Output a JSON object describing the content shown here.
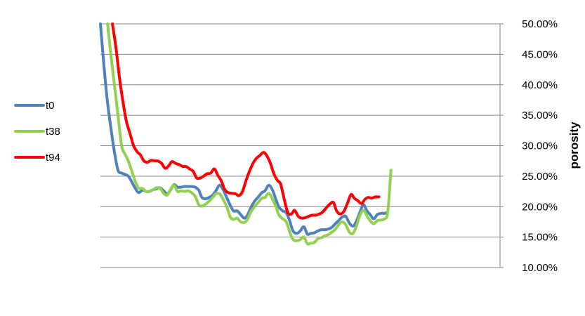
{
  "chart_data": {
    "type": "line",
    "title": "",
    "xlabel": "",
    "ylabel": "porosity",
    "ylim": [
      0.1,
      0.5
    ],
    "y_ticks": [
      "10.00%",
      "15.00%",
      "20.00%",
      "25.00%",
      "30.00%",
      "35.00%",
      "40.00%",
      "45.00%",
      "50.00%"
    ],
    "x_range": [
      0,
      100
    ],
    "grid": true,
    "legend_position": "left",
    "series": [
      {
        "name": "t0",
        "color": "#4f81bd",
        "points": [
          [
            0,
            0.5
          ],
          [
            0.9,
            0.43
          ],
          [
            1.8,
            0.37
          ],
          [
            2.6,
            0.33
          ],
          [
            3.5,
            0.29
          ],
          [
            4.4,
            0.26
          ],
          [
            5.3,
            0.255
          ],
          [
            6.1,
            0.253
          ],
          [
            7.0,
            0.25
          ],
          [
            7.9,
            0.24
          ],
          [
            8.8,
            0.229
          ],
          [
            9.6,
            0.223
          ],
          [
            10.5,
            0.227
          ],
          [
            11.4,
            0.225
          ],
          [
            12.3,
            0.225
          ],
          [
            13.2,
            0.228
          ],
          [
            14.0,
            0.229
          ],
          [
            14.9,
            0.231
          ],
          [
            15.8,
            0.226
          ],
          [
            16.7,
            0.221
          ],
          [
            17.5,
            0.227
          ],
          [
            18.4,
            0.236
          ],
          [
            19.3,
            0.232
          ],
          [
            20.2,
            0.232
          ],
          [
            21.1,
            0.233
          ],
          [
            21.9,
            0.233
          ],
          [
            22.8,
            0.233
          ],
          [
            23.7,
            0.232
          ],
          [
            24.6,
            0.227
          ],
          [
            25.4,
            0.215
          ],
          [
            26.3,
            0.213
          ],
          [
            27.2,
            0.215
          ],
          [
            28.1,
            0.219
          ],
          [
            28.9,
            0.226
          ],
          [
            29.8,
            0.235
          ],
          [
            30.7,
            0.228
          ],
          [
            31.6,
            0.215
          ],
          [
            32.5,
            0.202
          ],
          [
            33.3,
            0.193
          ],
          [
            34.2,
            0.193
          ],
          [
            35.1,
            0.187
          ],
          [
            36.0,
            0.181
          ],
          [
            36.8,
            0.186
          ],
          [
            37.7,
            0.199
          ],
          [
            38.6,
            0.209
          ],
          [
            39.5,
            0.216
          ],
          [
            40.4,
            0.223
          ],
          [
            41.2,
            0.226
          ],
          [
            42.1,
            0.235
          ],
          [
            43.0,
            0.228
          ],
          [
            43.9,
            0.212
          ],
          [
            44.7,
            0.199
          ],
          [
            45.6,
            0.193
          ],
          [
            46.5,
            0.19
          ],
          [
            47.4,
            0.176
          ],
          [
            48.2,
            0.16
          ],
          [
            49.1,
            0.156
          ],
          [
            50.0,
            0.16
          ],
          [
            50.9,
            0.167
          ],
          [
            51.8,
            0.155
          ],
          [
            52.6,
            0.156
          ],
          [
            53.5,
            0.157
          ],
          [
            54.4,
            0.16
          ],
          [
            55.3,
            0.162
          ],
          [
            56.1,
            0.162
          ],
          [
            57.0,
            0.163
          ],
          [
            57.9,
            0.166
          ],
          [
            58.8,
            0.172
          ],
          [
            59.6,
            0.177
          ],
          [
            60.5,
            0.183
          ],
          [
            61.4,
            0.184
          ],
          [
            62.3,
            0.173
          ],
          [
            63.2,
            0.168
          ],
          [
            64.0,
            0.175
          ],
          [
            64.9,
            0.19
          ],
          [
            65.8,
            0.203
          ],
          [
            66.7,
            0.193
          ],
          [
            67.5,
            0.187
          ],
          [
            68.4,
            0.18
          ],
          [
            69.3,
            0.187
          ],
          [
            70.2,
            0.189
          ],
          [
            71.1,
            0.189
          ],
          [
            71.9,
            0.191
          ]
        ]
      },
      {
        "name": "t38",
        "color": "#92d050",
        "points": [
          [
            1.8,
            0.5
          ],
          [
            2.6,
            0.45
          ],
          [
            3.5,
            0.4
          ],
          [
            4.4,
            0.35
          ],
          [
            5.3,
            0.3
          ],
          [
            6.1,
            0.287
          ],
          [
            7.0,
            0.275
          ],
          [
            7.9,
            0.257
          ],
          [
            8.8,
            0.24
          ],
          [
            9.6,
            0.23
          ],
          [
            10.5,
            0.23
          ],
          [
            11.4,
            0.225
          ],
          [
            12.3,
            0.225
          ],
          [
            13.2,
            0.228
          ],
          [
            14.0,
            0.231
          ],
          [
            14.9,
            0.23
          ],
          [
            15.8,
            0.222
          ],
          [
            16.7,
            0.219
          ],
          [
            17.5,
            0.228
          ],
          [
            18.4,
            0.235
          ],
          [
            19.3,
            0.225
          ],
          [
            20.2,
            0.226
          ],
          [
            21.1,
            0.225
          ],
          [
            21.9,
            0.226
          ],
          [
            22.8,
            0.223
          ],
          [
            23.7,
            0.217
          ],
          [
            24.6,
            0.203
          ],
          [
            25.4,
            0.201
          ],
          [
            26.3,
            0.204
          ],
          [
            27.2,
            0.209
          ],
          [
            28.1,
            0.215
          ],
          [
            28.9,
            0.221
          ],
          [
            29.8,
            0.221
          ],
          [
            30.7,
            0.212
          ],
          [
            31.6,
            0.2
          ],
          [
            32.5,
            0.183
          ],
          [
            33.3,
            0.179
          ],
          [
            34.2,
            0.181
          ],
          [
            35.1,
            0.175
          ],
          [
            36.0,
            0.174
          ],
          [
            36.8,
            0.179
          ],
          [
            37.7,
            0.192
          ],
          [
            38.6,
            0.2
          ],
          [
            39.5,
            0.207
          ],
          [
            40.4,
            0.214
          ],
          [
            41.2,
            0.215
          ],
          [
            42.1,
            0.222
          ],
          [
            43.0,
            0.213
          ],
          [
            43.9,
            0.2
          ],
          [
            44.7,
            0.186
          ],
          [
            45.6,
            0.18
          ],
          [
            46.5,
            0.175
          ],
          [
            47.4,
            0.158
          ],
          [
            48.2,
            0.146
          ],
          [
            49.1,
            0.144
          ],
          [
            50.0,
            0.146
          ],
          [
            50.9,
            0.15
          ],
          [
            51.8,
            0.139
          ],
          [
            52.6,
            0.14
          ],
          [
            53.5,
            0.141
          ],
          [
            54.4,
            0.147
          ],
          [
            55.3,
            0.149
          ],
          [
            56.1,
            0.152
          ],
          [
            57.0,
            0.154
          ],
          [
            57.9,
            0.158
          ],
          [
            58.8,
            0.163
          ],
          [
            59.6,
            0.17
          ],
          [
            60.5,
            0.175
          ],
          [
            61.4,
            0.17
          ],
          [
            62.3,
            0.158
          ],
          [
            63.2,
            0.156
          ],
          [
            64.0,
            0.167
          ],
          [
            64.9,
            0.185
          ],
          [
            65.8,
            0.194
          ],
          [
            66.7,
            0.185
          ],
          [
            67.5,
            0.177
          ],
          [
            68.4,
            0.172
          ],
          [
            69.3,
            0.177
          ],
          [
            70.2,
            0.178
          ],
          [
            71.1,
            0.18
          ],
          [
            71.9,
            0.191
          ],
          [
            72.7,
            0.26
          ]
        ]
      },
      {
        "name": "t94",
        "color": "#ff0000",
        "points": [
          [
            3.0,
            0.5
          ],
          [
            3.9,
            0.46
          ],
          [
            4.8,
            0.41
          ],
          [
            5.7,
            0.37
          ],
          [
            6.5,
            0.34
          ],
          [
            7.4,
            0.32
          ],
          [
            8.3,
            0.3
          ],
          [
            9.2,
            0.29
          ],
          [
            10.0,
            0.285
          ],
          [
            10.9,
            0.275
          ],
          [
            11.8,
            0.273
          ],
          [
            12.7,
            0.276
          ],
          [
            13.6,
            0.275
          ],
          [
            14.4,
            0.275
          ],
          [
            15.3,
            0.271
          ],
          [
            16.2,
            0.263
          ],
          [
            17.1,
            0.267
          ],
          [
            17.9,
            0.274
          ],
          [
            18.8,
            0.271
          ],
          [
            19.7,
            0.269
          ],
          [
            20.6,
            0.266
          ],
          [
            21.4,
            0.266
          ],
          [
            22.3,
            0.262
          ],
          [
            23.2,
            0.258
          ],
          [
            24.1,
            0.247
          ],
          [
            25.0,
            0.247
          ],
          [
            25.8,
            0.25
          ],
          [
            26.7,
            0.254
          ],
          [
            27.6,
            0.255
          ],
          [
            28.5,
            0.262
          ],
          [
            29.4,
            0.251
          ],
          [
            30.2,
            0.243
          ],
          [
            31.1,
            0.228
          ],
          [
            32.0,
            0.223
          ],
          [
            32.9,
            0.222
          ],
          [
            33.8,
            0.221
          ],
          [
            34.6,
            0.218
          ],
          [
            35.5,
            0.224
          ],
          [
            36.4,
            0.242
          ],
          [
            37.3,
            0.258
          ],
          [
            38.1,
            0.27
          ],
          [
            39.0,
            0.279
          ],
          [
            39.9,
            0.284
          ],
          [
            40.8,
            0.289
          ],
          [
            41.6,
            0.284
          ],
          [
            42.5,
            0.272
          ],
          [
            43.4,
            0.254
          ],
          [
            44.3,
            0.243
          ],
          [
            45.1,
            0.237
          ],
          [
            46.0,
            0.212
          ],
          [
            46.9,
            0.19
          ],
          [
            47.8,
            0.188
          ],
          [
            48.6,
            0.194
          ],
          [
            49.5,
            0.184
          ],
          [
            50.4,
            0.181
          ],
          [
            51.3,
            0.182
          ],
          [
            52.1,
            0.184
          ],
          [
            53.0,
            0.186
          ],
          [
            53.9,
            0.186
          ],
          [
            54.8,
            0.188
          ],
          [
            55.6,
            0.191
          ],
          [
            56.5,
            0.198
          ],
          [
            57.4,
            0.204
          ],
          [
            58.3,
            0.207
          ],
          [
            59.1,
            0.193
          ],
          [
            60.0,
            0.188
          ],
          [
            60.9,
            0.192
          ],
          [
            61.8,
            0.205
          ],
          [
            62.7,
            0.22
          ],
          [
            63.5,
            0.214
          ],
          [
            64.4,
            0.21
          ],
          [
            65.3,
            0.205
          ],
          [
            66.2,
            0.212
          ],
          [
            67.0,
            0.215
          ],
          [
            67.9,
            0.214
          ],
          [
            68.8,
            0.216
          ],
          [
            69.7,
            0.216
          ]
        ]
      }
    ]
  }
}
